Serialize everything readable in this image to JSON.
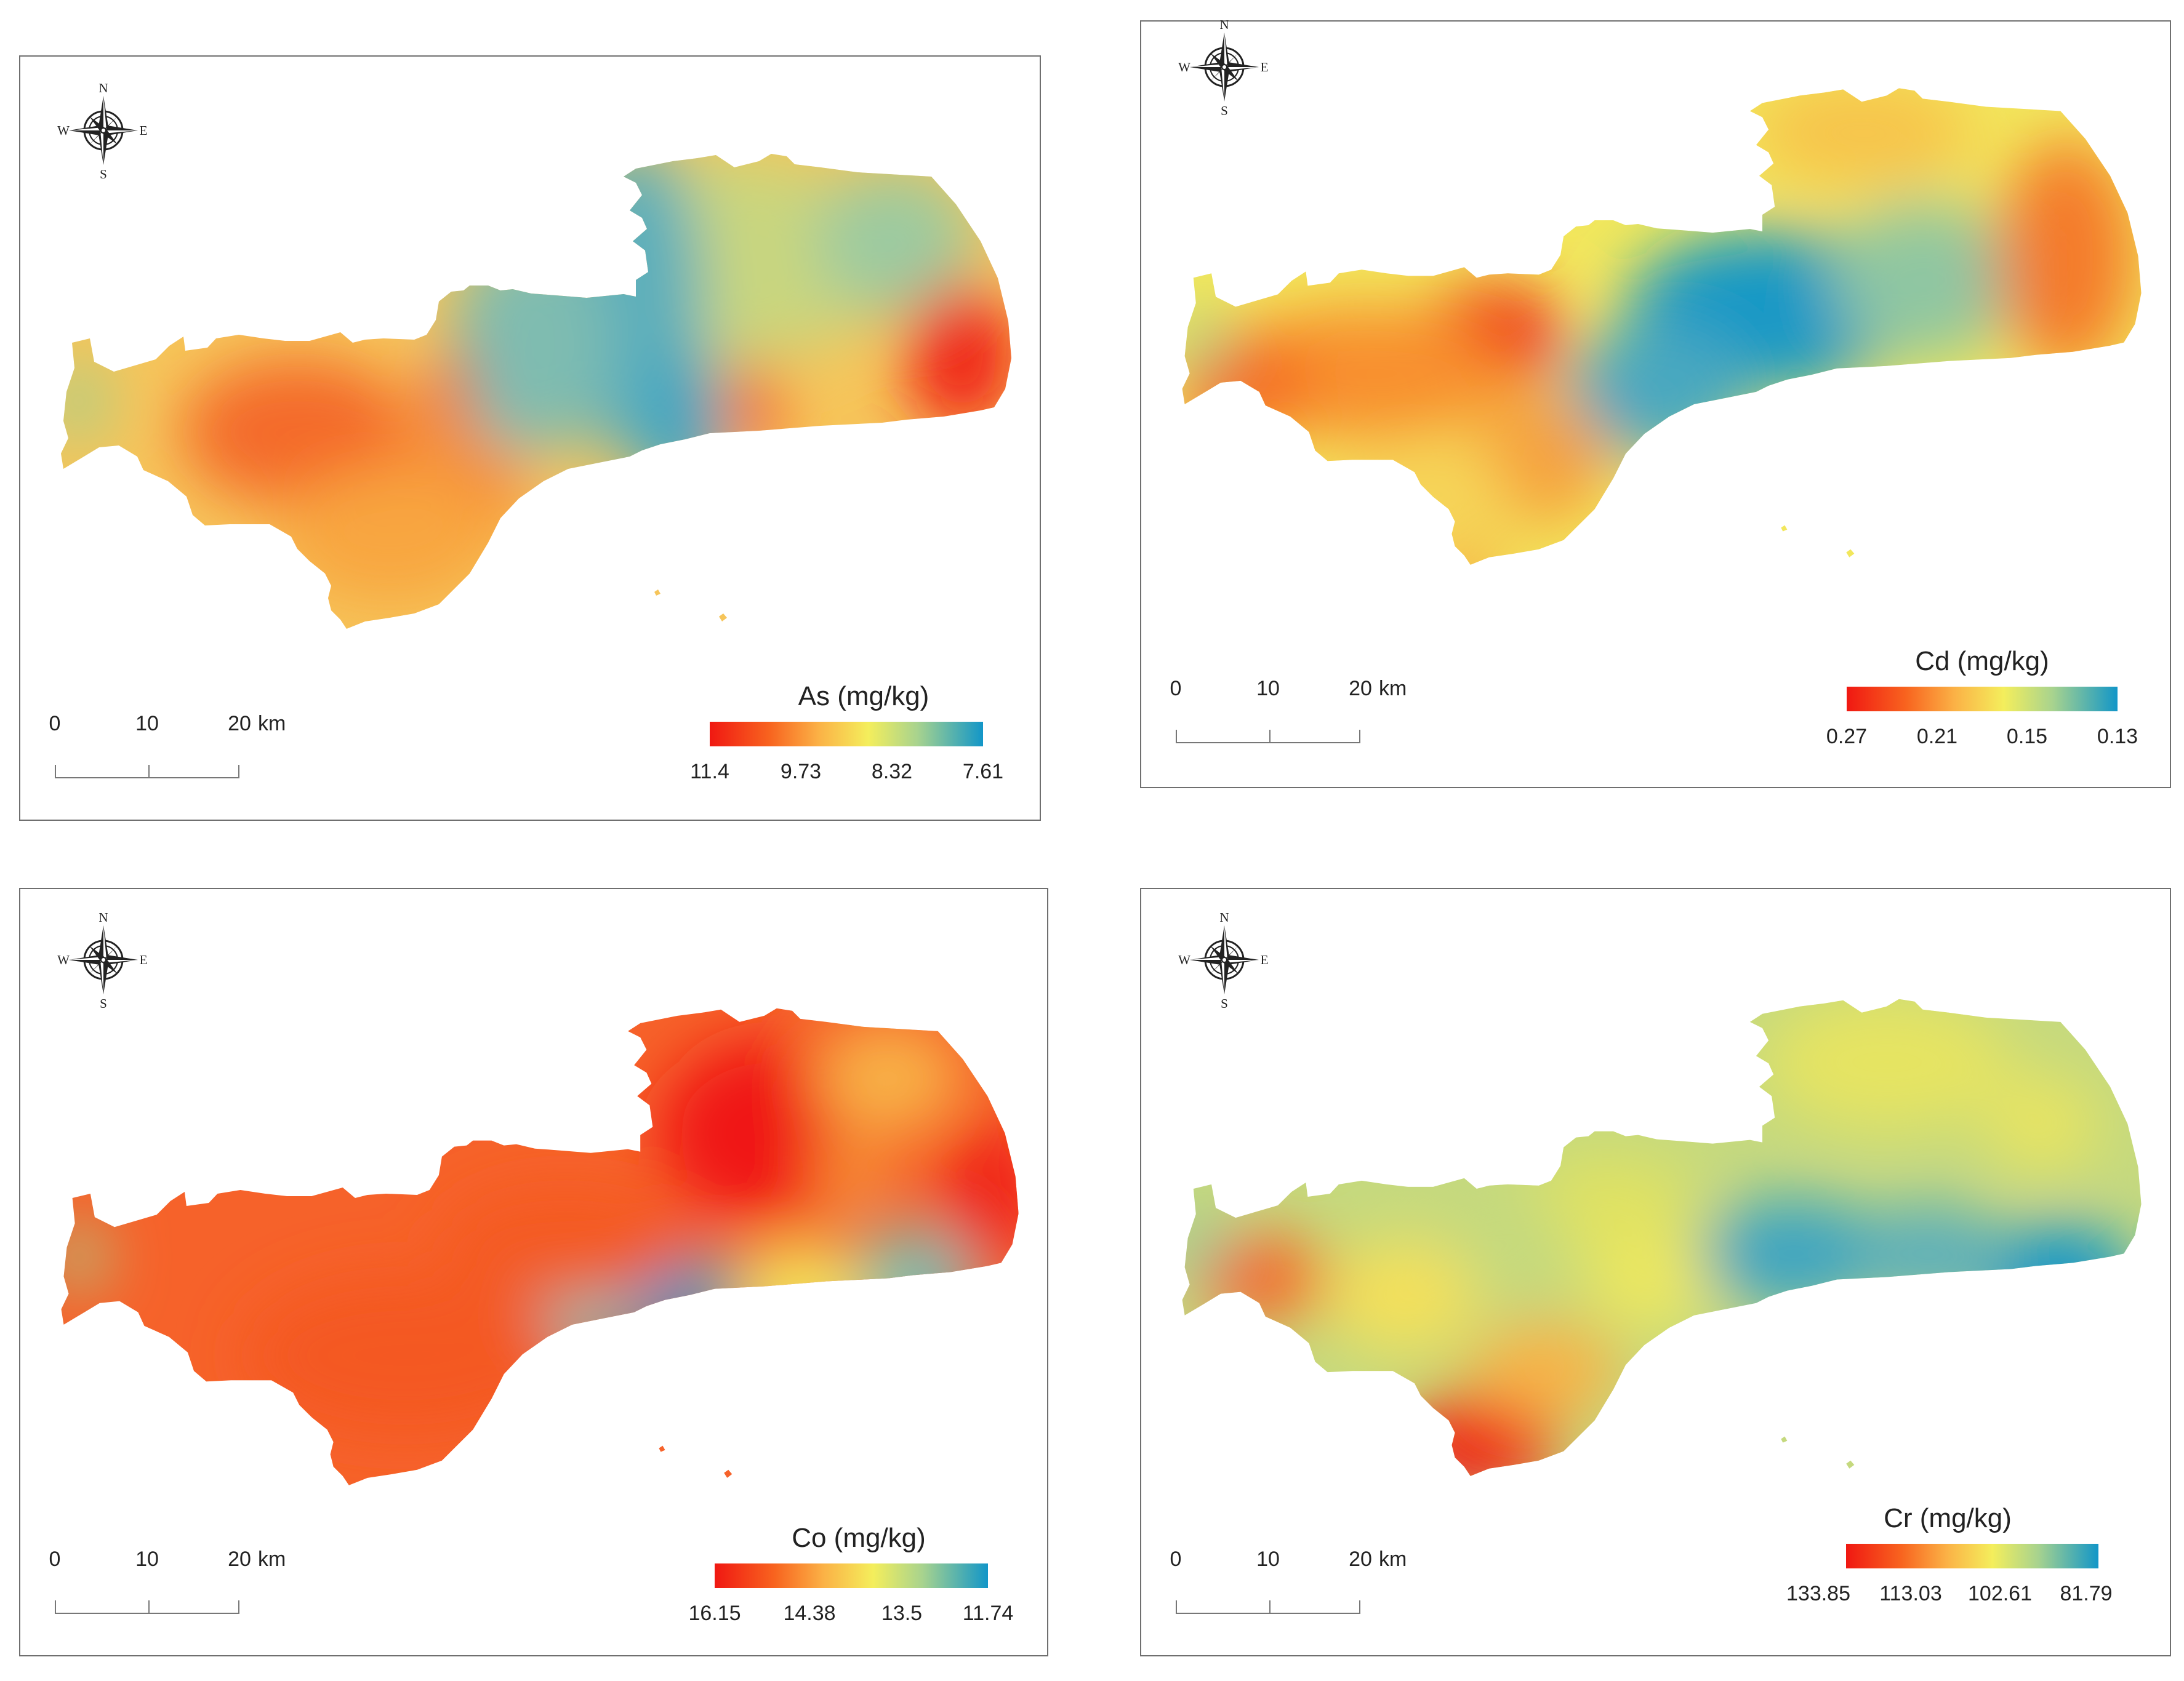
{
  "maps": [
    {
      "id": "as",
      "legend": {
        "title": "As (mg/kg)",
        "ticks": [
          "11.4",
          "9.73",
          "8.32",
          "7.61"
        ]
      },
      "scale": {
        "labels": [
          "0",
          "10",
          "20"
        ],
        "unit": "km"
      },
      "compass": {
        "n": "N",
        "s": "S",
        "e": "E",
        "w": "W"
      }
    },
    {
      "id": "cd",
      "legend": {
        "title": "Cd (mg/kg)",
        "ticks": [
          "0.27",
          "0.21",
          "0.15",
          "0.13"
        ]
      },
      "scale": {
        "labels": [
          "0",
          "10",
          "20"
        ],
        "unit": "km"
      },
      "compass": {
        "n": "N",
        "s": "S",
        "e": "E",
        "w": "W"
      }
    },
    {
      "id": "co",
      "legend": {
        "title": "Co (mg/kg)",
        "ticks": [
          "16.15",
          "14.38",
          "13.5",
          "11.74"
        ]
      },
      "scale": {
        "labels": [
          "0",
          "10",
          "20"
        ],
        "unit": "km"
      },
      "compass": {
        "n": "N",
        "s": "S",
        "e": "E",
        "w": "W"
      }
    },
    {
      "id": "cr",
      "legend": {
        "title": "Cr (mg/kg)",
        "ticks": [
          "133.85",
          "113.03",
          "102.61",
          "81.79"
        ]
      },
      "scale": {
        "labels": [
          "0",
          "10",
          "20"
        ],
        "unit": "km"
      },
      "compass": {
        "n": "N",
        "s": "S",
        "e": "E",
        "w": "W"
      }
    }
  ],
  "colors": {
    "high": "#f01812",
    "mid_high": "#f8641f",
    "mid": "#fbb246",
    "mid_low": "#f4ee5c",
    "low_mid": "#a8d38e",
    "low": "#1296c8",
    "border": "#6f6f6f"
  }
}
